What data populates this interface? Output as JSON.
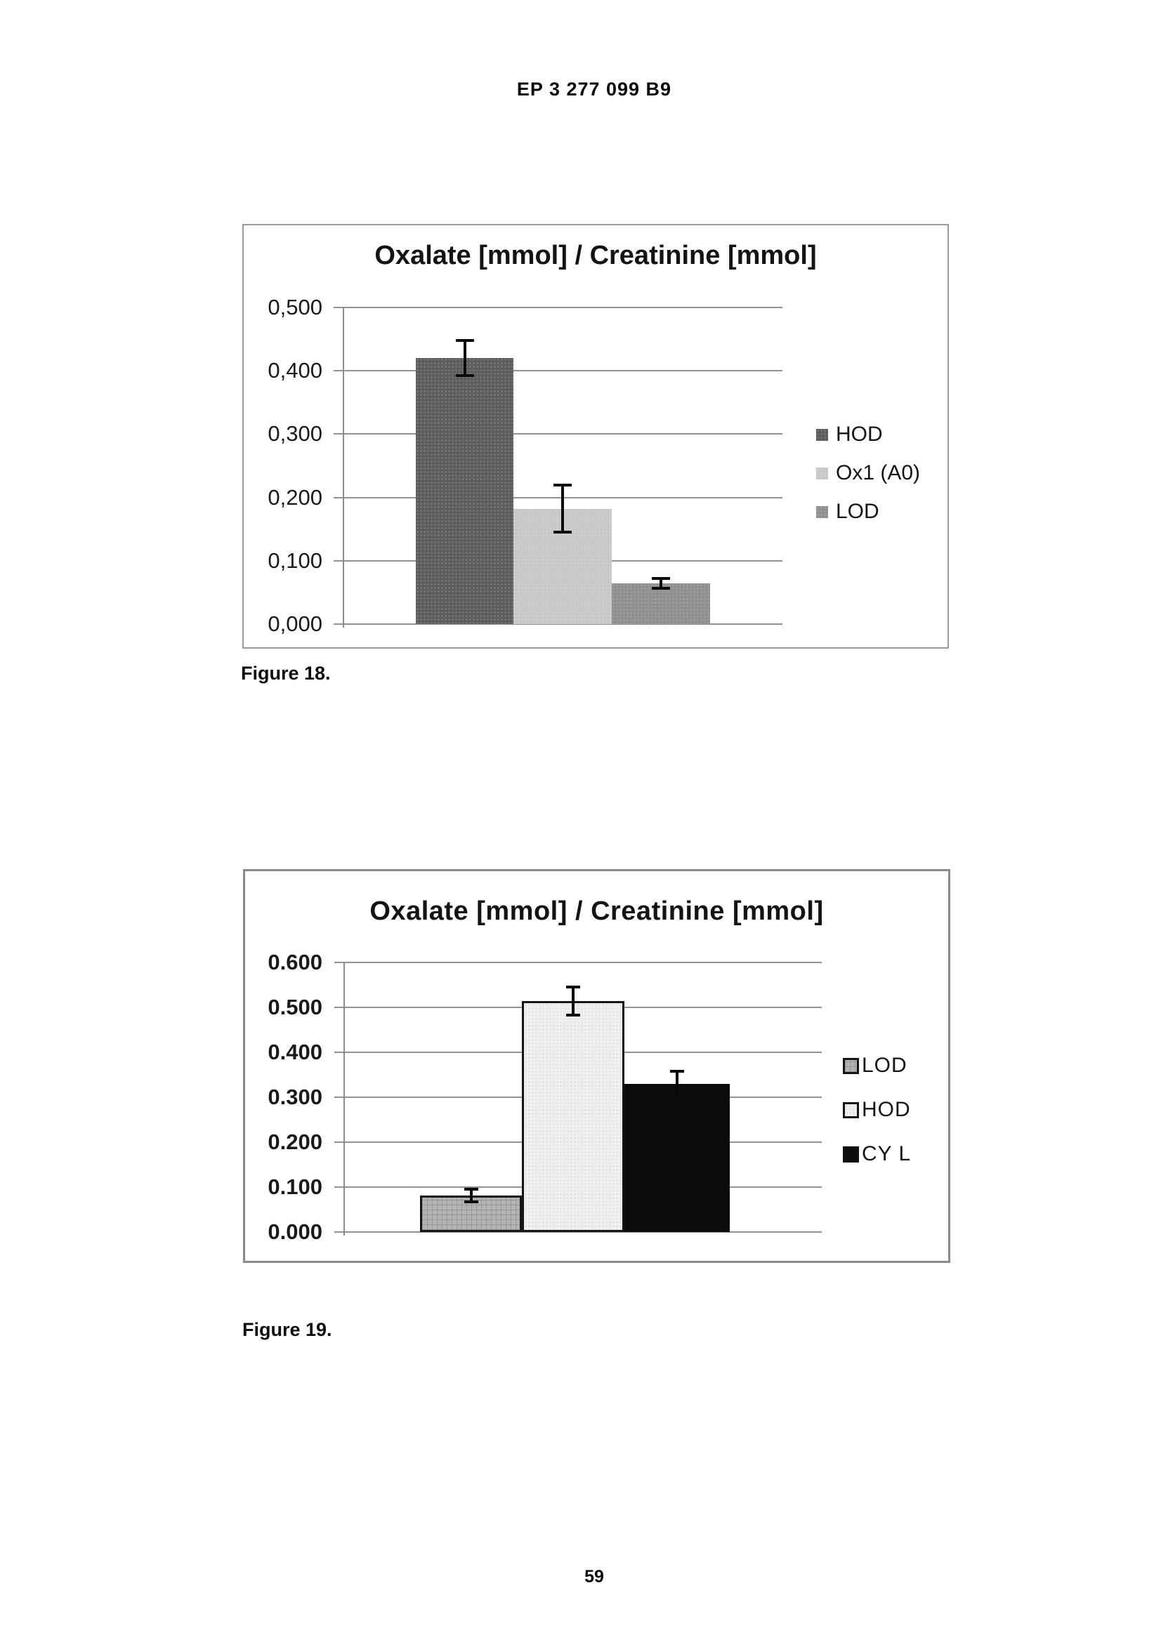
{
  "page": {
    "header": "EP 3 277 099 B9",
    "page_number": "59"
  },
  "figures": [
    {
      "caption": "Figure 18."
    },
    {
      "caption": "Figure 19."
    }
  ],
  "chart_data": [
    {
      "type": "bar",
      "title": "Oxalate [mmol] / Creatinine [mmol]",
      "categories": [
        "HOD",
        "Ox1 (A0)",
        "LOD"
      ],
      "values": [
        0.42,
        0.182,
        0.064
      ],
      "error_bars": [
        0.028,
        0.037,
        0.008
      ],
      "ylim": [
        0,
        0.5
      ],
      "ytick_step": 0.1,
      "ytick_labels_top_to_bottom": [
        "0,500",
        "0,400",
        "0,300",
        "0,200",
        "0,100",
        "0,000"
      ],
      "decimal_separator": ",",
      "xlabel": "",
      "ylabel": "",
      "grid": true,
      "legend_position": "right",
      "legend": [
        "HOD",
        "Ox1 (A0)",
        "LOD"
      ],
      "series_styles": [
        {
          "label": "HOD",
          "color": "#5d5d5d",
          "border": "",
          "texture": "speckle-dark"
        },
        {
          "label": "Ox1 (A0)",
          "color": "#c8c8c8",
          "border": "",
          "texture": "speckle-dark"
        },
        {
          "label": "LOD",
          "color": "#8f8f8f",
          "border": "",
          "texture": "speckle-dark"
        }
      ]
    },
    {
      "type": "bar",
      "title": "Oxalate [mmol] / Creatinine [mmol]",
      "categories": [
        "LOD",
        "HOD",
        "CY L"
      ],
      "values": [
        0.081,
        0.514,
        0.33
      ],
      "error_bars": [
        0.014,
        0.031,
        0.028
      ],
      "ylim": [
        0,
        0.6
      ],
      "ytick_step": 0.1,
      "ytick_labels_top_to_bottom": [
        "0.600",
        "0.500",
        "0.400",
        "0.300",
        "0.200",
        "0.100",
        "0.000"
      ],
      "decimal_separator": ".",
      "xlabel": "",
      "ylabel": "",
      "grid": true,
      "legend_position": "right",
      "legend": [
        "LOD",
        "HOD",
        "CY L"
      ],
      "series_styles": [
        {
          "label": "LOD",
          "color": "#b3b3b3",
          "border": "#151515",
          "texture": "crosshatch"
        },
        {
          "label": "HOD",
          "color": "#f0f0f0",
          "border": "#151515",
          "texture": "speckle-light"
        },
        {
          "label": "CY L",
          "color": "#0c0c0c",
          "border": "",
          "texture": "flat"
        }
      ]
    }
  ]
}
